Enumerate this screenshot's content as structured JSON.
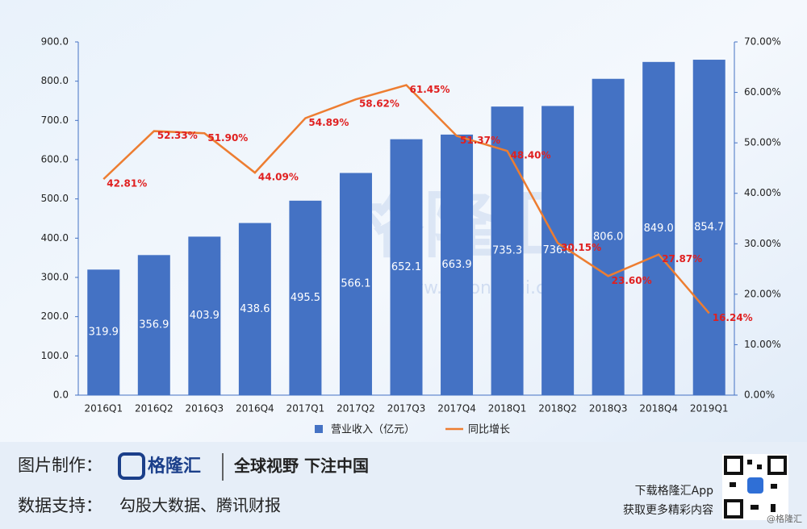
{
  "chart_data": {
    "type": "bar-line",
    "categories": [
      "2016Q1",
      "2016Q2",
      "2016Q3",
      "2016Q4",
      "2017Q1",
      "2017Q2",
      "2017Q3",
      "2017Q4",
      "2018Q1",
      "2018Q2",
      "2018Q3",
      "2018Q4",
      "2019Q1"
    ],
    "series": [
      {
        "name": "营业收入（亿元）",
        "type": "bar",
        "color": "#4472c4",
        "values": [
          319.9,
          356.9,
          403.9,
          438.6,
          495.5,
          566.1,
          652.1,
          663.9,
          735.3,
          736.8,
          806.0,
          849.0,
          854.7
        ],
        "value_labels": [
          "319.9",
          "356.9",
          "403.9",
          "438.6",
          "495.5",
          "566.1",
          "652.1",
          "663.9",
          "735.3",
          "736.8",
          "806.0",
          "849.0",
          "854.7"
        ]
      },
      {
        "name": "同比增长",
        "type": "line",
        "axis": "y2",
        "color": "#ed7d31",
        "values": [
          42.81,
          52.33,
          51.9,
          44.09,
          54.89,
          58.62,
          61.45,
          51.37,
          48.4,
          30.15,
          23.6,
          27.87,
          16.24
        ],
        "value_labels": [
          "42.81%",
          "52.33%",
          "51.90%",
          "44.09%",
          "54.89%",
          "58.62%",
          "61.45%",
          "51.37%",
          "48.40%",
          "30.15%",
          "23.60%",
          "27.87%",
          "16.24%"
        ]
      }
    ],
    "ylim": [
      0,
      900
    ],
    "yticks": [
      {
        "value": 0,
        "label": "0.0"
      },
      {
        "value": 100,
        "label": "100.0"
      },
      {
        "value": 200,
        "label": "200.0"
      },
      {
        "value": 300,
        "label": "300.0"
      },
      {
        "value": 400,
        "label": "400.0"
      },
      {
        "value": 500,
        "label": "500.0"
      },
      {
        "value": 600,
        "label": "600.0"
      },
      {
        "value": 700,
        "label": "700.0"
      },
      {
        "value": 800,
        "label": "800.0"
      },
      {
        "value": 900,
        "label": "900.0"
      }
    ],
    "y2lim": [
      0,
      70
    ],
    "y2ticks": [
      {
        "value": 0,
        "label": "0.00%"
      },
      {
        "value": 10,
        "label": "10.00%"
      },
      {
        "value": 20,
        "label": "20.00%"
      },
      {
        "value": 30,
        "label": "30.00%"
      },
      {
        "value": 40,
        "label": "40.00%"
      },
      {
        "value": 50,
        "label": "50.00%"
      },
      {
        "value": 60,
        "label": "60.00%"
      },
      {
        "value": 70,
        "label": "70.00%"
      }
    ],
    "legend": "bottom"
  },
  "watermark": {
    "logo": "格隆汇",
    "url": "www.gelonghui.com"
  },
  "footer": {
    "made_by_label": "图片制作：",
    "logo": "格隆汇",
    "slogan": "全球视野 下注中国",
    "data_label": "数据支持：",
    "data_source": "勾股大数据、腾讯财报",
    "app_line1": "下载格隆汇App",
    "app_line2": "获取更多精彩内容",
    "credit": "@格隆汇"
  }
}
